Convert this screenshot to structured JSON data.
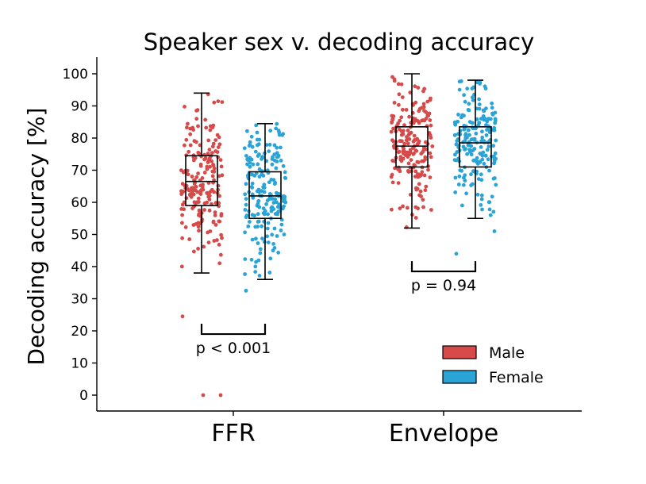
{
  "chart_data": {
    "type": "box",
    "title": "Speaker sex v. decoding accuracy",
    "xlabel": "",
    "ylabel": "Decoding accuracy [%]",
    "ylim": [
      -5,
      105
    ],
    "yticks": [
      0,
      10,
      20,
      30,
      40,
      50,
      60,
      70,
      80,
      90,
      100
    ],
    "categories": [
      "FFR",
      "Envelope"
    ],
    "series": [
      {
        "name": "Male",
        "color": "#d64a4a",
        "boxes": [
          {
            "category": "FFR",
            "whisker_low": 38,
            "q1": 59,
            "median": 66.5,
            "q3": 74.5,
            "whisker_high": 94,
            "outliers": [
              24.5,
              0,
              0
            ],
            "n_points": 200
          },
          {
            "category": "Envelope",
            "whisker_low": 52,
            "q1": 71,
            "median": 77.5,
            "q3": 83.5,
            "whisker_high": 100,
            "outliers": [],
            "n_points": 200
          }
        ]
      },
      {
        "name": "Female",
        "color": "#2aa3d6",
        "boxes": [
          {
            "category": "FFR",
            "whisker_low": 36,
            "q1": 55,
            "median": 62,
            "q3": 69.5,
            "whisker_high": 84.5,
            "outliers": [
              32.5
            ],
            "n_points": 200
          },
          {
            "category": "Envelope",
            "whisker_low": 55,
            "q1": 71,
            "median": 78.5,
            "q3": 83.5,
            "whisker_high": 98,
            "outliers": [
              44,
              51
            ],
            "n_points": 200
          }
        ]
      }
    ],
    "annotations": [
      {
        "category": "FFR",
        "text": "p < 0.001",
        "bracket_y": 19
      },
      {
        "category": "Envelope",
        "text": "p = 0.94",
        "bracket_y": 38.5
      }
    ],
    "legend": {
      "position": "lower-right",
      "entries": [
        "Male",
        "Female"
      ]
    }
  }
}
